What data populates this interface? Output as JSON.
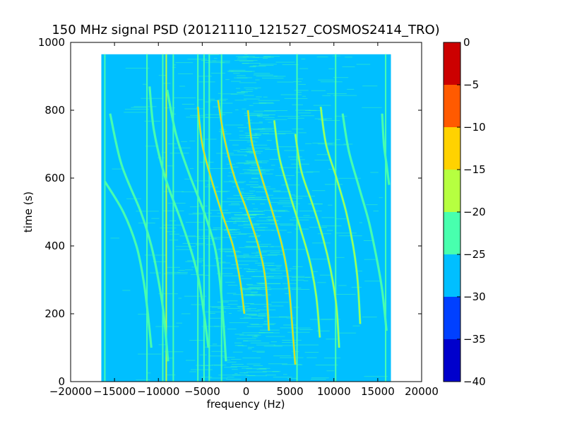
{
  "chart_data": {
    "type": "heatmap",
    "title": "150 MHz signal PSD (20121110_121527_COSMOS2414_TRO)",
    "xlabel": "frequency (Hz)",
    "ylabel": "time (s)",
    "xlim": [
      -20000,
      20000
    ],
    "ylim": [
      0,
      1000
    ],
    "xticks": [
      -20000,
      -15000,
      -10000,
      -5000,
      0,
      5000,
      10000,
      15000,
      20000
    ],
    "xtick_labels": [
      "−20000",
      "−15000",
      "−10000",
      "−5000",
      "0",
      "5000",
      "10000",
      "15000",
      "20000"
    ],
    "yticks": [
      0,
      200,
      400,
      600,
      800,
      1000
    ],
    "ytick_labels": [
      "0",
      "200",
      "400",
      "600",
      "800",
      "1000"
    ],
    "data_extent": {
      "x": [
        -16500,
        16500
      ],
      "y": [
        0,
        965
      ]
    },
    "background_level": "-30 to -25",
    "colorbar": {
      "range": [
        -40,
        0
      ],
      "ticks": [
        0,
        -5,
        -10,
        -15,
        -20,
        -25,
        -30,
        -35,
        -40
      ],
      "tick_labels": [
        "0",
        "−5",
        "−10",
        "−15",
        "−20",
        "−25",
        "−30",
        "−35",
        "−40"
      ],
      "bands": [
        {
          "from": -40,
          "to": -35,
          "color": "#0000cc"
        },
        {
          "from": -35,
          "to": -30,
          "color": "#0040ff"
        },
        {
          "from": -30,
          "to": -25,
          "color": "#00bfff"
        },
        {
          "from": -25,
          "to": -20,
          "color": "#48ffae"
        },
        {
          "from": -20,
          "to": -15,
          "color": "#b6ff40"
        },
        {
          "from": -15,
          "to": -10,
          "color": "#ffd200"
        },
        {
          "from": -10,
          "to": -5,
          "color": "#ff5a00"
        },
        {
          "from": -5,
          "to": 0,
          "color": "#cc0000"
        }
      ]
    },
    "vertical_lines": [
      {
        "x": -16100,
        "ymax": 965,
        "level": -22
      },
      {
        "x": -11300,
        "ymax": 965,
        "level": -22
      },
      {
        "x": -9500,
        "ymax": 965,
        "level": -20
      },
      {
        "x": -9100,
        "ymax": 965,
        "level": -18
      },
      {
        "x": -8300,
        "ymax": 965,
        "level": -22
      },
      {
        "x": -5500,
        "ymax": 965,
        "level": -22
      },
      {
        "x": -4800,
        "ymax": 965,
        "level": -22
      },
      {
        "x": -4200,
        "ymax": 965,
        "level": -22
      },
      {
        "x": -2800,
        "ymax": 965,
        "level": -22
      },
      {
        "x": 5800,
        "ymax": 965,
        "level": -22
      },
      {
        "x": 10200,
        "ymax": 965,
        "level": -20
      },
      {
        "x": 15900,
        "ymax": 965,
        "level": -22
      }
    ],
    "series": [
      {
        "level": -22,
        "points": [
          [
            -16100,
            590
          ],
          [
            -14000,
            500
          ],
          [
            -12500,
            400
          ],
          [
            -11700,
            300
          ],
          [
            -11200,
            200
          ],
          [
            -10800,
            100
          ]
        ]
      },
      {
        "level": -22,
        "points": [
          [
            -15500,
            790
          ],
          [
            -14200,
            640
          ],
          [
            -12000,
            500
          ],
          [
            -10800,
            400
          ],
          [
            -10000,
            300
          ],
          [
            -9400,
            200
          ],
          [
            -8900,
            60
          ]
        ]
      },
      {
        "level": -22,
        "points": [
          [
            -11000,
            870
          ],
          [
            -10500,
            740
          ],
          [
            -9200,
            600
          ],
          [
            -7500,
            480
          ],
          [
            -6200,
            380
          ],
          [
            -5400,
            300
          ],
          [
            -4800,
            200
          ],
          [
            -4300,
            100
          ]
        ]
      },
      {
        "level": -20,
        "points": [
          [
            -9000,
            860
          ],
          [
            -8000,
            730
          ],
          [
            -6600,
            620
          ],
          [
            -4800,
            500
          ],
          [
            -3600,
            400
          ],
          [
            -3000,
            300
          ],
          [
            -2600,
            180
          ],
          [
            -2300,
            60
          ]
        ]
      },
      {
        "level": -12,
        "points": [
          [
            -5500,
            810
          ],
          [
            -5000,
            700
          ],
          [
            -4000,
            600
          ],
          [
            -2800,
            500
          ],
          [
            -1500,
            400
          ],
          [
            -700,
            300
          ],
          [
            -200,
            200
          ]
        ]
      },
      {
        "level": -10,
        "points": [
          [
            -3200,
            830
          ],
          [
            -2500,
            720
          ],
          [
            -1300,
            600
          ],
          [
            0,
            510
          ],
          [
            1400,
            400
          ],
          [
            2200,
            300
          ],
          [
            2600,
            150
          ]
        ]
      },
      {
        "level": -12,
        "points": [
          [
            200,
            800
          ],
          [
            700,
            700
          ],
          [
            1800,
            600
          ],
          [
            3000,
            500
          ],
          [
            4100,
            400
          ],
          [
            4800,
            300
          ],
          [
            5300,
            150
          ],
          [
            5600,
            50
          ]
        ]
      },
      {
        "level": -15,
        "points": [
          [
            3200,
            770
          ],
          [
            3800,
            660
          ],
          [
            5000,
            550
          ],
          [
            6200,
            450
          ],
          [
            7300,
            350
          ],
          [
            8000,
            250
          ],
          [
            8400,
            130
          ]
        ]
      },
      {
        "level": -15,
        "points": [
          [
            5600,
            730
          ],
          [
            6300,
            620
          ],
          [
            7600,
            520
          ],
          [
            8800,
            420
          ],
          [
            9700,
            320
          ],
          [
            10300,
            220
          ],
          [
            10600,
            100
          ]
        ]
      },
      {
        "level": -18,
        "points": [
          [
            8500,
            810
          ],
          [
            9100,
            700
          ],
          [
            10300,
            600
          ],
          [
            11400,
            500
          ],
          [
            12200,
            400
          ],
          [
            12700,
            300
          ],
          [
            13000,
            170
          ]
        ]
      },
      {
        "level": -20,
        "points": [
          [
            11000,
            790
          ],
          [
            11700,
            680
          ],
          [
            12900,
            570
          ],
          [
            14000,
            470
          ],
          [
            14900,
            360
          ],
          [
            15500,
            270
          ],
          [
            16000,
            150
          ]
        ]
      },
      {
        "level": -22,
        "points": [
          [
            15500,
            790
          ],
          [
            15700,
            700
          ],
          [
            16000,
            640
          ],
          [
            16300,
            580
          ]
        ]
      }
    ]
  }
}
